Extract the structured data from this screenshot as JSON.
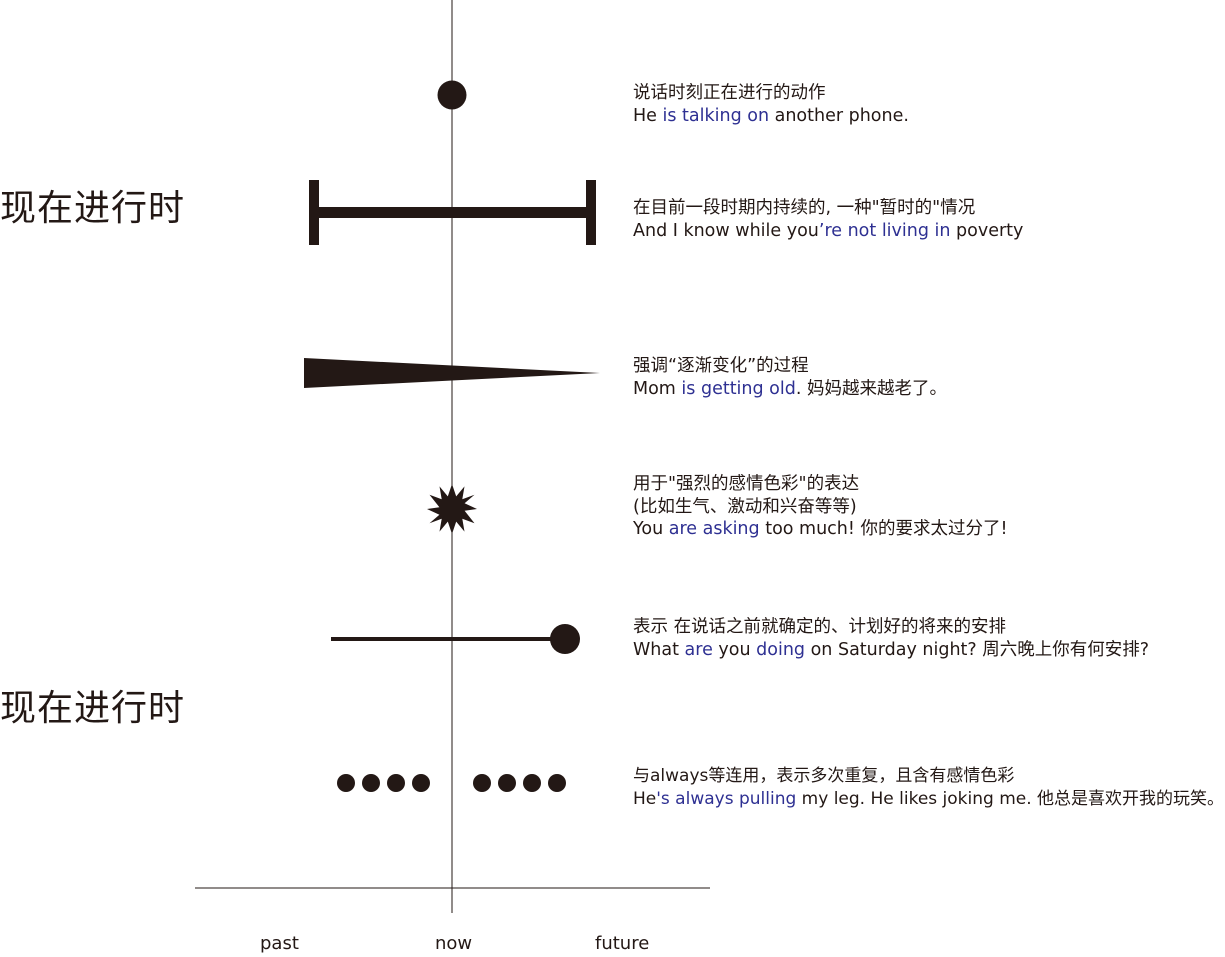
{
  "titles": [
    "现在进行时",
    "现在进行时"
  ],
  "axis": {
    "past": "past",
    "now": "now",
    "future": "future"
  },
  "colors": {
    "ink": "#231815",
    "highlight": "#2e3092"
  },
  "usages": [
    {
      "symbol": "dot",
      "heading": "说话时刻正在进行的动作",
      "example": [
        {
          "text": "He ",
          "hl": false
        },
        {
          "text": "is talking on",
          "hl": true
        },
        {
          "text": " another phone.",
          "hl": false
        }
      ]
    },
    {
      "symbol": "bracket-bar",
      "heading": "在目前一段时期内持续的, 一种\"暂时的\"情况",
      "example": [
        {
          "text": "And I know while you",
          "hl": false
        },
        {
          "text": "’re not living in",
          "hl": true
        },
        {
          "text": " poverty",
          "hl": false
        }
      ]
    },
    {
      "symbol": "tapering-wedge",
      "heading": "强调“逐渐变化”的过程",
      "example": [
        {
          "text": "Mom ",
          "hl": false
        },
        {
          "text": "is getting old",
          "hl": true
        },
        {
          "text": ". 妈妈越来越老了。",
          "hl": false
        }
      ]
    },
    {
      "symbol": "starburst",
      "heading": "用于\"强烈的感情色彩\"的表达",
      "heading2": "(比如生气、激动和兴奋等等)",
      "example": [
        {
          "text": "You ",
          "hl": false
        },
        {
          "text": "are asking",
          "hl": true
        },
        {
          "text": " too much! 你的要求太过分了!",
          "hl": false
        }
      ]
    },
    {
      "symbol": "line-with-future-dot",
      "heading": "表示 在说话之前就确定的、计划好的将来的安排",
      "example": [
        {
          "text": "What ",
          "hl": false
        },
        {
          "text": "are",
          "hl": true
        },
        {
          "text": " you ",
          "hl": false
        },
        {
          "text": "doing",
          "hl": true
        },
        {
          "text": " on Saturday night? 周六晚上你有何安排?",
          "hl": false
        }
      ]
    },
    {
      "symbol": "repeated-dots",
      "heading": "与always等连用，表示多次重复，且含有感情色彩",
      "example": [
        {
          "text": "He",
          "hl": false
        },
        {
          "text": "'s always pulling",
          "hl": true
        },
        {
          "text": " my leg. He likes joking me. 他总是喜欢开我的玩笑。",
          "hl": false
        }
      ]
    }
  ]
}
